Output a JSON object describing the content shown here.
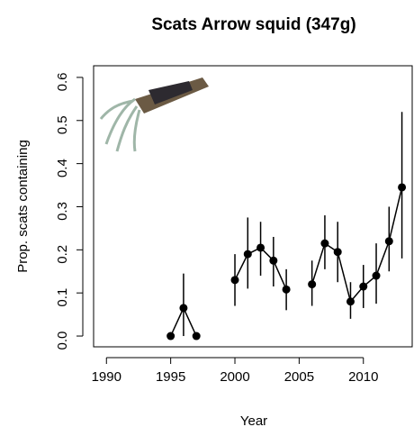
{
  "chart_data": {
    "type": "line",
    "title": "Scats Arrow squid (347g)",
    "x_label": "Year",
    "y_label": "Prop. scats containing",
    "x": [
      1995,
      1996,
      1997,
      1998,
      1999,
      2000,
      2001,
      2002,
      2003,
      2004,
      2005,
      2006,
      2007,
      2008,
      2009,
      2010,
      2011,
      2012,
      2013
    ],
    "series": [
      {
        "name": "proportion",
        "color": "#000000",
        "values": [
          0,
          0.065,
          0,
          null,
          null,
          0.13,
          0.19,
          0.205,
          0.175,
          0.108,
          null,
          0.12,
          0.215,
          0.195,
          0.08,
          0.115,
          0.14,
          0.22,
          0.345
        ]
      },
      {
        "name": "lower",
        "color": "#000000",
        "values": [
          0,
          0,
          0,
          null,
          null,
          0.07,
          0.11,
          0.14,
          0.115,
          0.06,
          null,
          0.07,
          0.155,
          0.125,
          0.04,
          0.065,
          0.075,
          0.15,
          0.18
        ]
      },
      {
        "name": "upper",
        "color": "#000000",
        "values": [
          0,
          0.145,
          0,
          null,
          null,
          0.19,
          0.275,
          0.265,
          0.23,
          0.155,
          null,
          0.175,
          0.28,
          0.265,
          0.125,
          0.165,
          0.215,
          0.3,
          0.52
        ]
      }
    ],
    "xlim": [
      1989,
      2013.8
    ],
    "xticks": [
      1990,
      1995,
      2000,
      2005,
      2010
    ],
    "ylim": [
      -0.025,
      0.627
    ],
    "yticks": [
      {
        "value": 0,
        "label": "0.0"
      },
      0.1,
      0.2,
      0.3,
      0.4,
      0.5,
      0.6
    ]
  }
}
